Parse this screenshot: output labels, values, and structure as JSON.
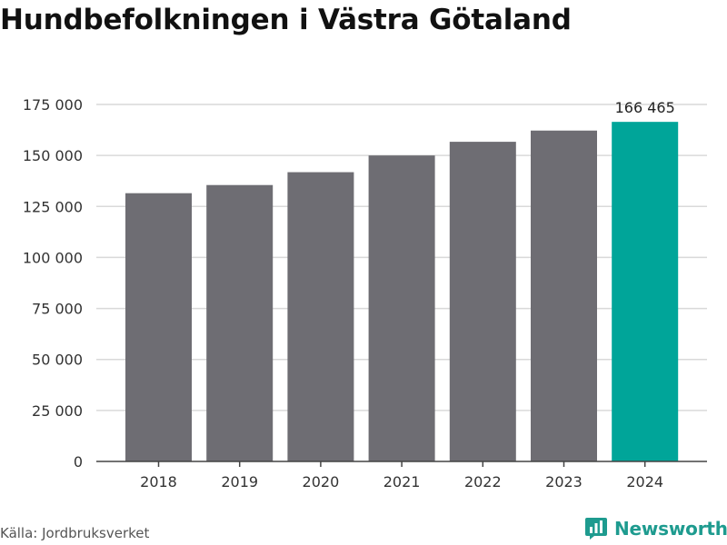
{
  "title": "Hundbefolkningen i Västra Götaland",
  "source": "Källa: Jordbruksverket",
  "brand": {
    "name": "Newsworthy",
    "icon": "newsworthy-logo-icon",
    "color": "#1e9b8f"
  },
  "colors": {
    "bar": "#6e6d73",
    "highlight": "#00a599",
    "grid": "#d9d9d9",
    "axis": "#444444"
  },
  "chart_data": {
    "type": "bar",
    "categories": [
      "2018",
      "2019",
      "2020",
      "2021",
      "2022",
      "2023",
      "2024"
    ],
    "values": [
      131500,
      135500,
      141800,
      150000,
      156700,
      162200,
      166465
    ],
    "highlight_index": 6,
    "data_labels": [
      {
        "category": "2024",
        "text": "166 465"
      }
    ],
    "yticks": [
      {
        "value": 0,
        "label": "0"
      },
      {
        "value": 25000,
        "label": "25 000"
      },
      {
        "value": 50000,
        "label": "50 000"
      },
      {
        "value": 75000,
        "label": "75 000"
      },
      {
        "value": 100000,
        "label": "100 000"
      },
      {
        "value": 125000,
        "label": "125 000"
      },
      {
        "value": 150000,
        "label": "150 000"
      },
      {
        "value": 175000,
        "label": "175 000"
      }
    ],
    "ylim": [
      0,
      175000
    ],
    "grid": true,
    "legend": "none",
    "xlabel": "",
    "ylabel": ""
  }
}
